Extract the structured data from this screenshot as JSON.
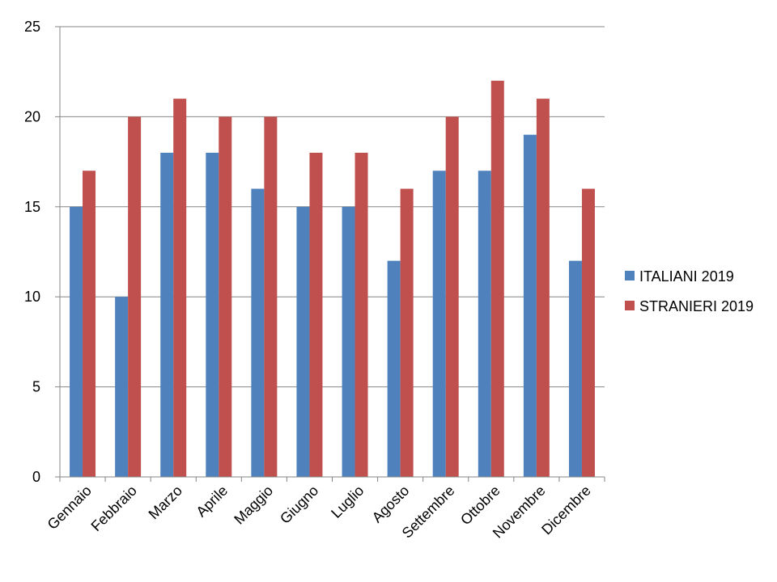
{
  "chart_data": {
    "type": "bar",
    "title": "",
    "xlabel": "",
    "ylabel": "",
    "categories": [
      "Gennaio",
      "Febbraio",
      "Marzo",
      "Aprile",
      "Maggio",
      "Giugno",
      "Luglio",
      "Agosto",
      "Settembre",
      "Ottobre",
      "Novembre",
      "Dicembre"
    ],
    "series": [
      {
        "name": "ITALIANI 2019",
        "color": "#4F81BD",
        "values": [
          15,
          10,
          18,
          18,
          16,
          15,
          15,
          12,
          17,
          17,
          19,
          12
        ]
      },
      {
        "name": "STRANIERI 2019",
        "color": "#C0504D",
        "values": [
          17,
          20,
          21,
          20,
          20,
          18,
          18,
          16,
          20,
          22,
          21,
          16
        ]
      }
    ],
    "ylim": [
      0,
      25
    ],
    "yticks": [
      0,
      5,
      10,
      15,
      20,
      25
    ],
    "grid": true,
    "legend_position": "right"
  }
}
